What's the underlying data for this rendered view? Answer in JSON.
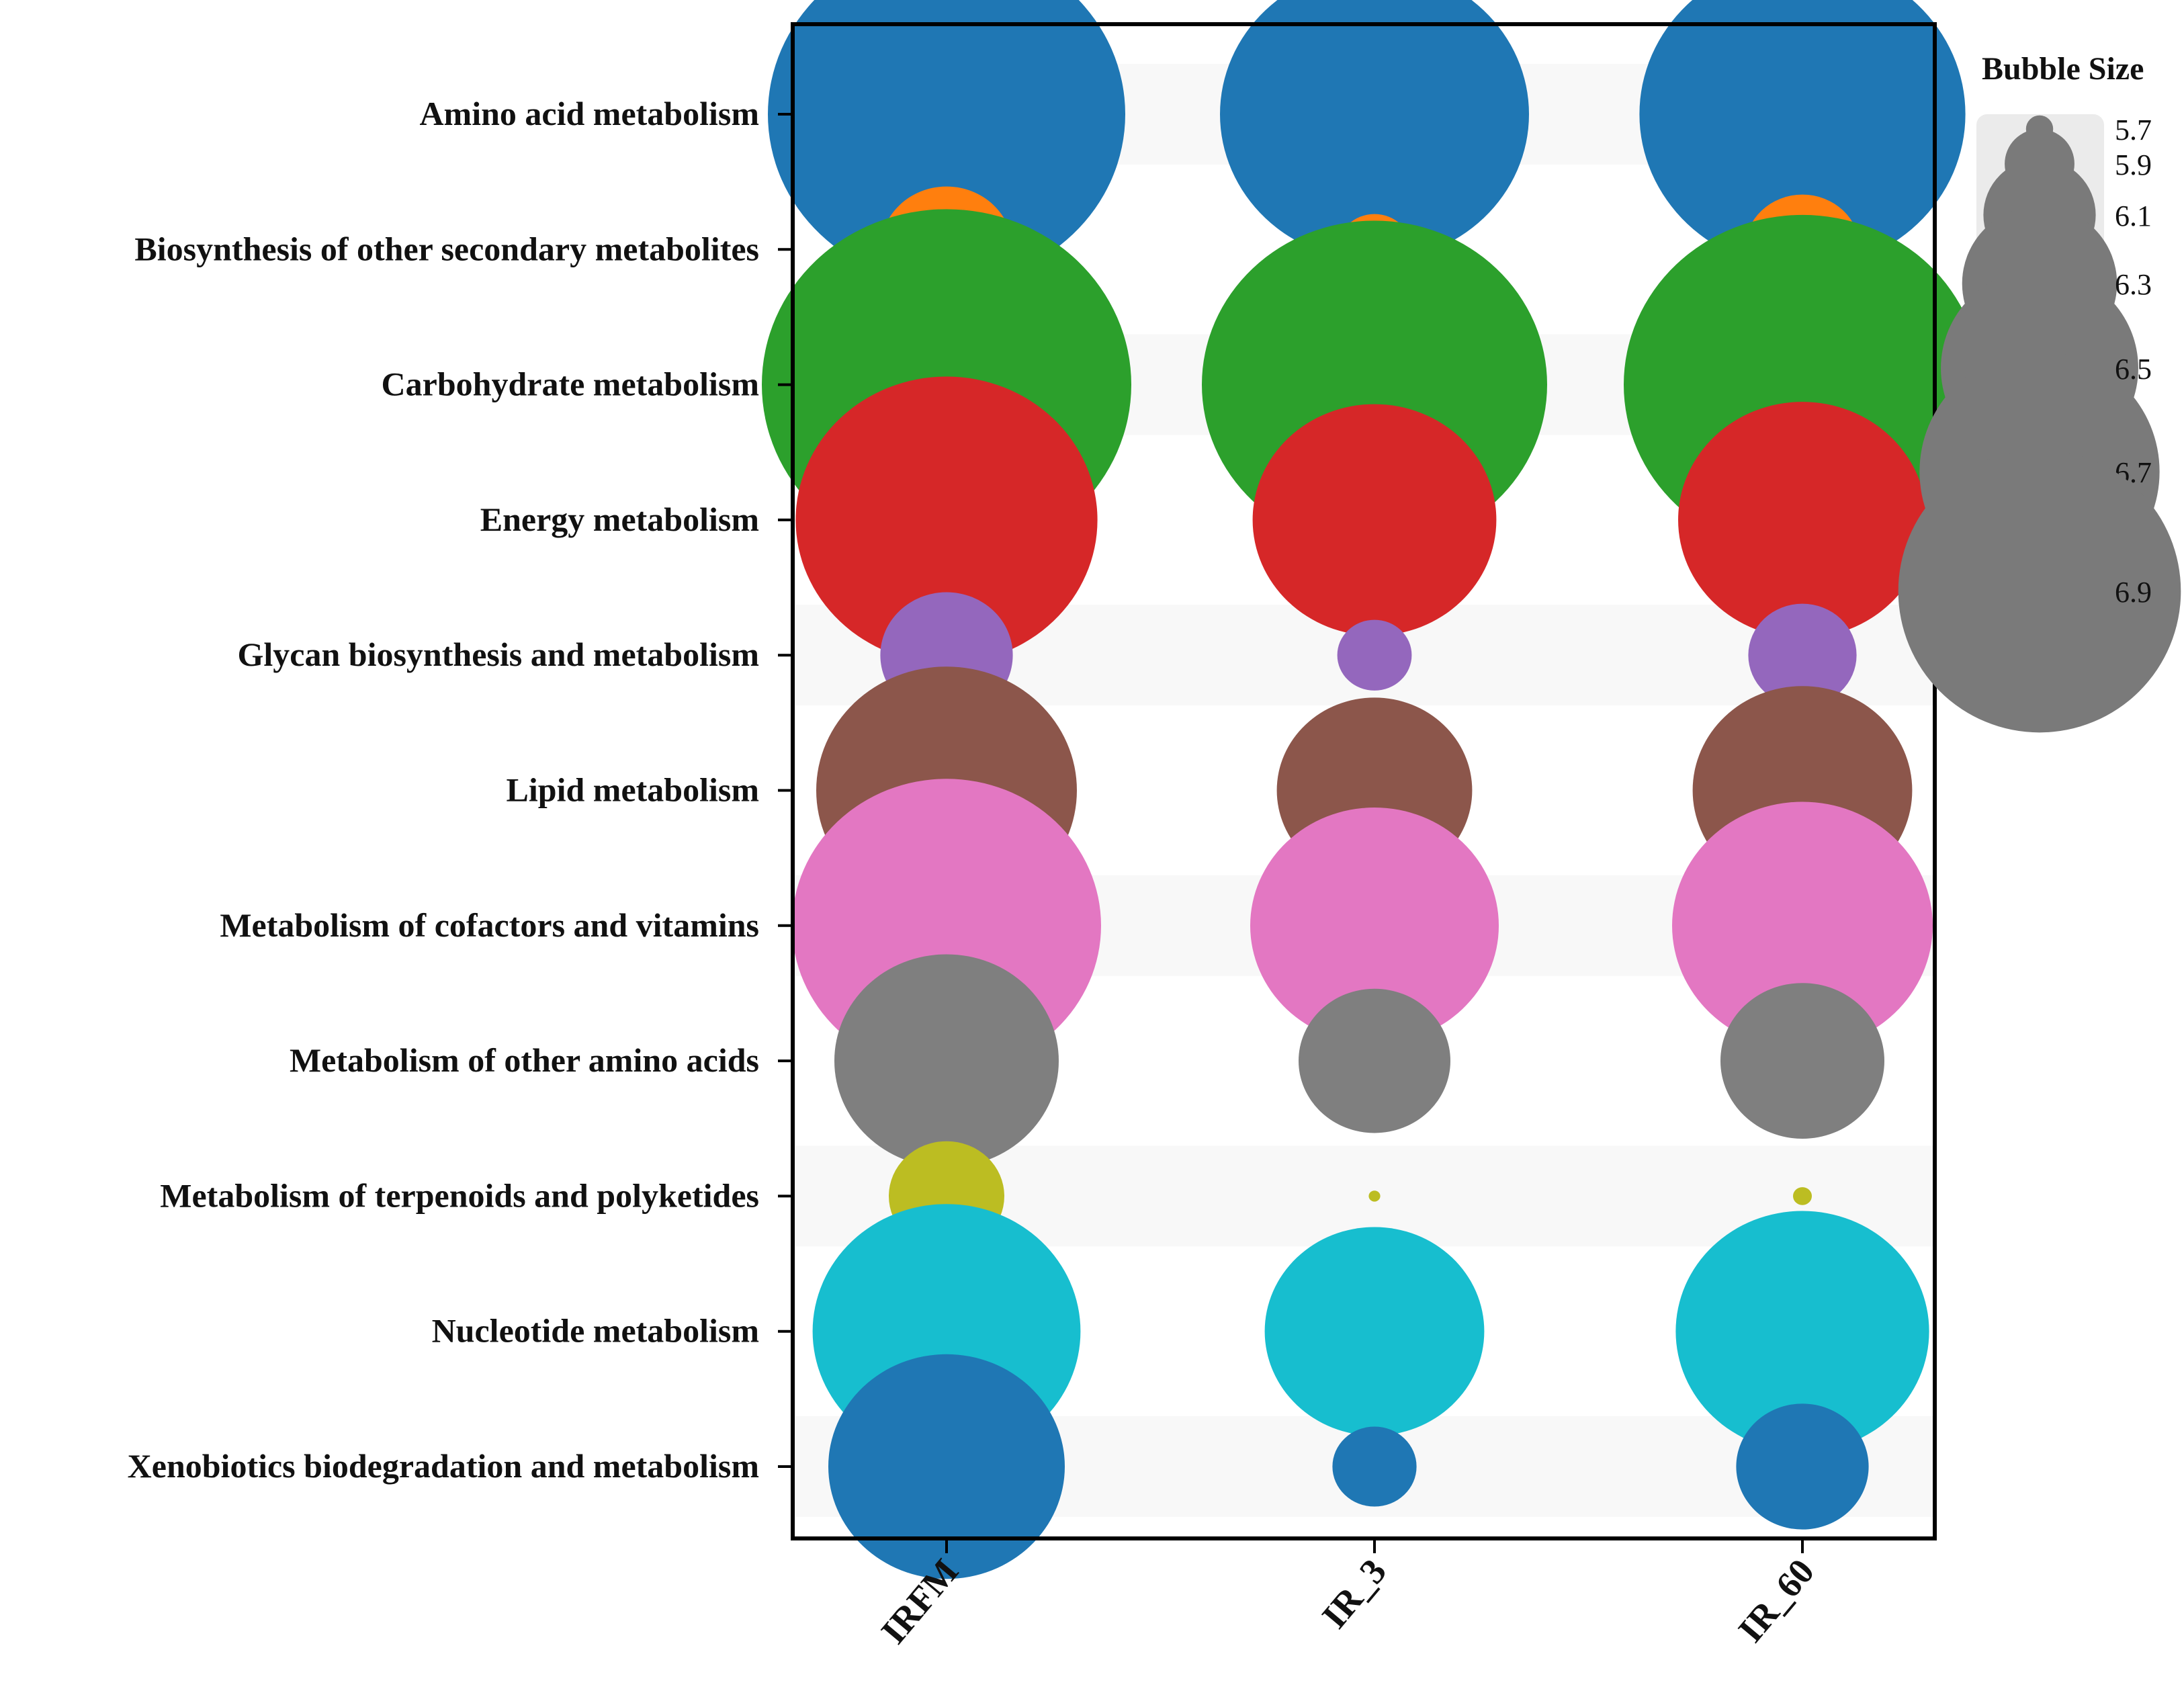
{
  "chart_data": {
    "type": "bubble",
    "categories": [
      "Amino acid metabolism",
      "Biosynthesis of other secondary metabolites",
      "Carbohydrate metabolism",
      "Energy metabolism",
      "Glycan biosynthesis and metabolism",
      "Lipid metabolism",
      "Metabolism of cofactors and vitamins",
      "Metabolism of other amino acids",
      "Metabolism of terpenoids and polyketides",
      "Nucleotide metabolism",
      "Xenobiotics biodegradation and metabolism"
    ],
    "groups": [
      "IRFM",
      "IR_3",
      "IR_60"
    ],
    "colors": [
      "#1f77b4",
      "#ff7f0e",
      "#2ca02c",
      "#d62728",
      "#9467bd",
      "#8c564b",
      "#e377c2",
      "#7f7f7f",
      "#bcbd22",
      "#17becf",
      "#1f77b4"
    ],
    "values": [
      [
        7.05,
        6.85,
        6.92
      ],
      [
        6.12,
        5.88,
        6.05
      ],
      [
        7.1,
        7.0,
        7.05
      ],
      [
        6.82,
        6.58,
        6.6
      ],
      [
        6.12,
        5.88,
        6.02
      ],
      [
        6.65,
        6.38,
        6.48
      ],
      [
        6.85,
        6.6,
        6.65
      ],
      [
        6.5,
        6.2,
        6.25
      ],
      [
        6.05,
        5.62,
        5.65
      ],
      [
        6.68,
        6.48,
        6.62
      ],
      [
        6.55,
        5.92,
        6.12
      ]
    ],
    "legend": {
      "title": "Bubble Size",
      "values": [
        5.7,
        5.9,
        6.1,
        6.3,
        6.5,
        6.7,
        6.9
      ],
      "labels": [
        "5.7",
        "5.9",
        "6.1",
        "6.3",
        "6.5",
        "6.7",
        "6.9"
      ],
      "placement": "top-right"
    },
    "xlabel": "",
    "ylabel": ""
  }
}
